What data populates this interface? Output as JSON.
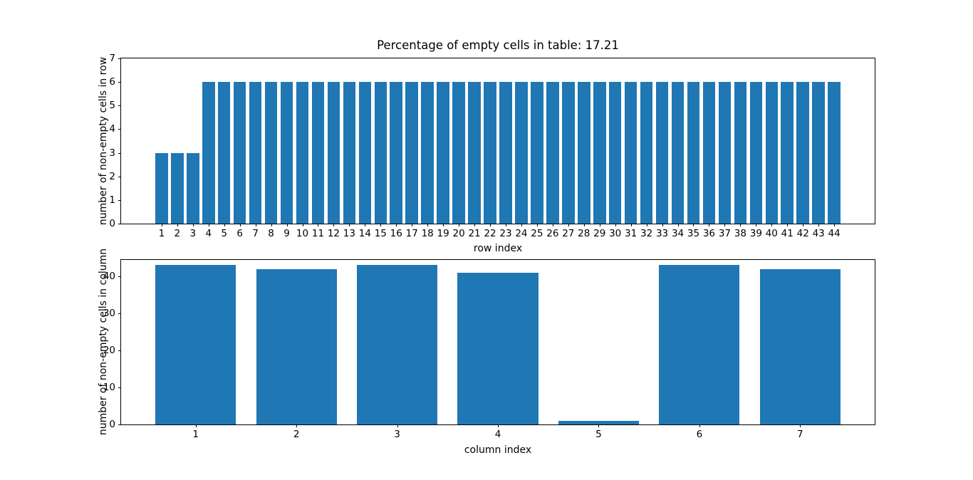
{
  "figure": {
    "background": "#ffffff",
    "bar_color": "#1f77b4",
    "spine_color": "#000000",
    "text_color": "#000000"
  },
  "chart_data": [
    {
      "type": "bar",
      "title": "Percentage of empty cells in table: 17.21",
      "xlabel": "row index",
      "ylabel": "number of non-empty cells in row",
      "categories": [
        1,
        2,
        3,
        4,
        5,
        6,
        7,
        8,
        9,
        10,
        11,
        12,
        13,
        14,
        15,
        16,
        17,
        18,
        19,
        20,
        21,
        22,
        23,
        24,
        25,
        26,
        27,
        28,
        29,
        30,
        31,
        32,
        33,
        34,
        35,
        36,
        37,
        38,
        39,
        40,
        41,
        42,
        43,
        44
      ],
      "values": [
        3,
        3,
        3,
        6,
        6,
        6,
        6,
        6,
        6,
        6,
        6,
        6,
        6,
        6,
        6,
        6,
        6,
        6,
        6,
        6,
        6,
        6,
        6,
        6,
        6,
        6,
        6,
        6,
        6,
        6,
        6,
        6,
        6,
        6,
        6,
        6,
        6,
        6,
        6,
        6,
        6,
        6,
        6,
        6
      ],
      "bar_width": 0.8,
      "xlim": [
        -1.59,
        46.59
      ],
      "ylim": [
        0,
        7
      ],
      "yticks": [
        0,
        1,
        2,
        3,
        4,
        5,
        6,
        7
      ],
      "grid": false
    },
    {
      "type": "bar",
      "title": "",
      "xlabel": "column index",
      "ylabel": "number of non-empty cells in column",
      "categories": [
        1,
        2,
        3,
        4,
        5,
        6,
        7
      ],
      "values": [
        43,
        42,
        43,
        41,
        1,
        43,
        42
      ],
      "bar_width": 0.8,
      "xlim": [
        0.26,
        7.74
      ],
      "ylim": [
        0,
        44.4
      ],
      "yticks": [
        0,
        10,
        20,
        30,
        40
      ],
      "grid": false
    }
  ]
}
